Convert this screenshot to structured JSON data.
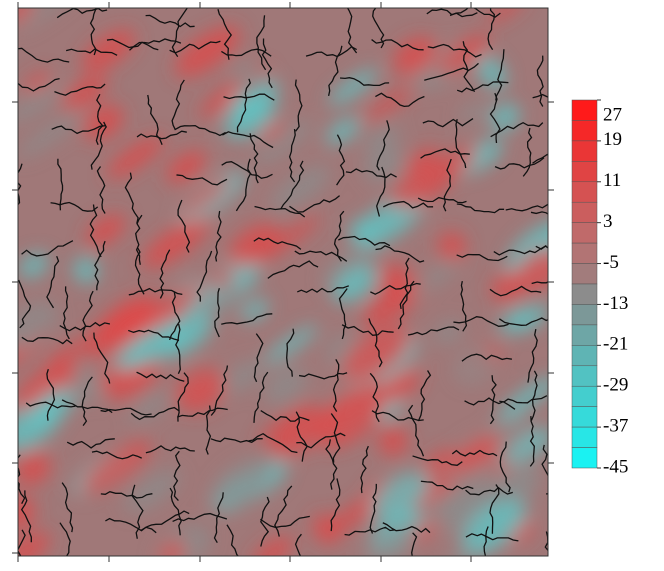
{
  "chart_data": {
    "type": "heatmap",
    "colorbar": {
      "lim": [
        -45,
        27
      ],
      "ticks": [
        27,
        19,
        11,
        3,
        -5,
        -13,
        -21,
        -29,
        -37,
        -45
      ],
      "colors": [
        "#ff1a1a",
        "#f52828",
        "#ea3636",
        "#e04444",
        "#d55252",
        "#cb5e5e",
        "#c06a6a",
        "#b27474",
        "#a27c7c",
        "#8c8c8c",
        "#7c9898",
        "#6ea6a6",
        "#5fb4b4",
        "#52c2c2",
        "#44cece",
        "#36dada",
        "#28e6e6",
        "#1af2f2"
      ]
    }
  }
}
